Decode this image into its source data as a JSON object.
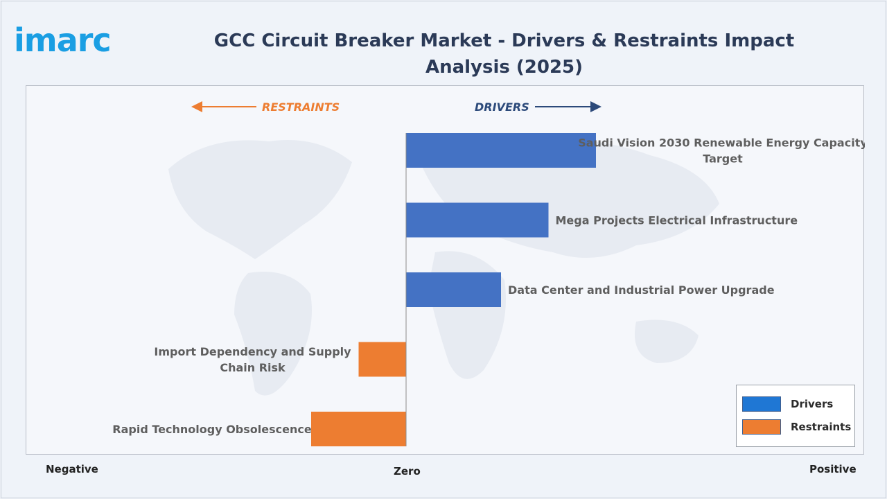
{
  "brand": {
    "logo_text": "imarc",
    "logo_color": "#1a9ee3"
  },
  "header": {
    "title": "GCC Circuit Breaker Market - Drivers & Restraints Impact Analysis (2025)"
  },
  "direction": {
    "restraints_label": "RESTRAINTS",
    "drivers_label": "DRIVERS"
  },
  "axis": {
    "negative": "Negative",
    "zero": "Zero",
    "positive": "Positive"
  },
  "legend": [
    {
      "label": "Drivers",
      "color": "#1f77d4"
    },
    {
      "label": "Restraints",
      "color": "#ed7d31"
    }
  ],
  "colors": {
    "driver_bar": "#4472c4",
    "restraint_bar": "#ed7d31",
    "label_text": "#5e5e5e",
    "restraints_arrow": "#ed7d31",
    "drivers_arrow": "#2c4a7a"
  },
  "chart_data": {
    "type": "bar",
    "orientation": "horizontal",
    "title": "GCC Circuit Breaker Market - Drivers & Restraints Impact Analysis (2025)",
    "xlim": [
      -4,
      4
    ],
    "grid": false,
    "legend_position": "bottom-right",
    "categories": [
      "Saudi Vision 2030 Renewable Energy Capacity Target",
      "Mega Projects Electrical Infrastructure",
      "Data Center and Industrial Power Upgrade",
      "Import Dependency and Supply Chain Risk",
      "Rapid Technology Obsolescence"
    ],
    "series": [
      {
        "name": "Drivers",
        "values": [
          2.0,
          1.5,
          1.0,
          null,
          null
        ]
      },
      {
        "name": "Restraints",
        "values": [
          null,
          null,
          null,
          -0.5,
          -1.0
        ]
      }
    ]
  }
}
